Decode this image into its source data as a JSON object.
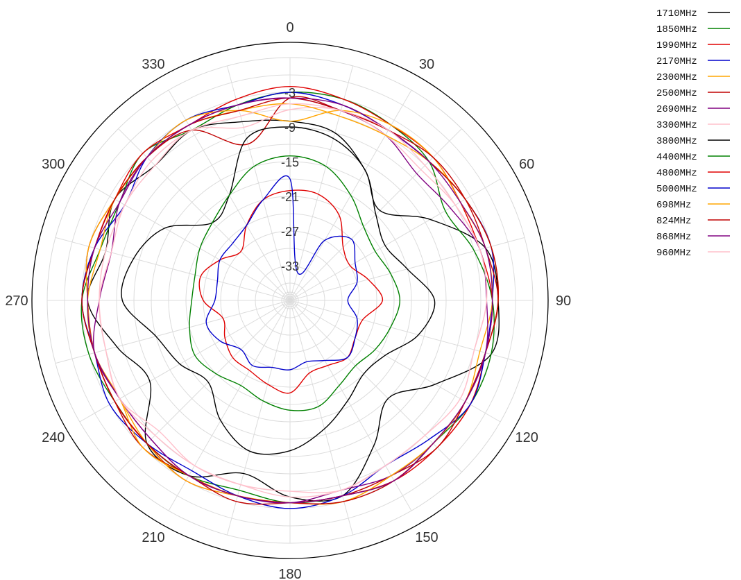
{
  "chart_data": {
    "type": "polar-line",
    "angle_direction": "clockwise",
    "zero_direction": "top",
    "angle_labels": [
      "0",
      "30",
      "60",
      "90",
      "120",
      "150",
      "180",
      "210",
      "240",
      "270",
      "300",
      "330"
    ],
    "angle_label_values": [
      0,
      30,
      60,
      90,
      120,
      150,
      180,
      210,
      240,
      270,
      300,
      330
    ],
    "radial_labels": [
      "-3",
      "-9",
      "-15",
      "-21",
      "-27",
      "-33"
    ],
    "radial_label_values": [
      -3,
      -9,
      -15,
      -21,
      -27,
      -33
    ],
    "rlim": [
      -39,
      3
    ],
    "grid": true,
    "legend_position": "top-right",
    "series": [
      {
        "name": "1710MHz",
        "color": "#000000",
        "values": [
          -8,
          -9,
          -13,
          -17,
          -11,
          -4,
          -3,
          -3,
          -10,
          -15,
          -10,
          -4,
          -5,
          -8,
          -4,
          -4,
          -11,
          -8,
          -4,
          -6,
          -4,
          -6,
          -5,
          -7
        ]
      },
      {
        "name": "1850MHz",
        "color": "#008000",
        "values": [
          -3,
          -3,
          -4,
          -5,
          -8,
          -6,
          -4,
          -3,
          -3,
          -4,
          -3,
          -4,
          -4,
          -5,
          -4,
          -4,
          -4,
          -3,
          -3,
          -5,
          -5,
          -3,
          -5,
          -4
        ]
      },
      {
        "name": "1990MHz",
        "color": "#e00000",
        "values": [
          -2,
          -3,
          -4,
          -4,
          -5,
          -5,
          -4,
          -4,
          -3,
          -3,
          -3,
          -4,
          -4,
          -4,
          -3,
          -4,
          -4,
          -4,
          -3,
          -4,
          -4,
          -3,
          -4,
          -3
        ]
      },
      {
        "name": "2170MHz",
        "color": "#0000cc",
        "values": [
          -3,
          -4,
          -5,
          -5,
          -4,
          -3,
          -4,
          -4,
          -3,
          -5,
          -6,
          -4,
          -3,
          -4,
          -5,
          -4,
          -3,
          -4,
          -3,
          -4,
          -6,
          -4,
          -3,
          -4
        ]
      },
      {
        "name": "2300MHz",
        "color": "#ffa500",
        "values": [
          -8,
          -5,
          -4,
          -4,
          -5,
          -4,
          -4,
          -5,
          -4,
          -4,
          -4,
          -3,
          -4,
          -4,
          -3,
          -4,
          -5,
          -4,
          -4,
          -5,
          -4,
          -4,
          -3,
          -5
        ]
      },
      {
        "name": "2500MHz",
        "color": "#c00000",
        "values": [
          -4,
          -5,
          -5,
          -4,
          -4,
          -4,
          -3,
          -4,
          -4,
          -3,
          -4,
          -4,
          -4,
          -3,
          -4,
          -3,
          -4,
          -4,
          -4,
          -3,
          -4,
          -4,
          -5,
          -11
        ]
      },
      {
        "name": "2690MHz",
        "color": "#800080",
        "values": [
          -4,
          -5,
          -6,
          -8,
          -7,
          -5,
          -5,
          -4,
          -4,
          -4,
          -4,
          -5,
          -4,
          -4,
          -4,
          -5,
          -5,
          -4,
          -6,
          -7,
          -5,
          -4,
          -4,
          -4
        ]
      },
      {
        "name": "3300MHz",
        "color": "#ffc0cb",
        "values": [
          -6,
          -5,
          -6,
          -7,
          -6,
          -5,
          -5,
          -6,
          -5,
          -6,
          -6,
          -5,
          -6,
          -6,
          -6,
          -7,
          -5,
          -6,
          -6,
          -7,
          -6,
          -6,
          -5,
          -8
        ]
      },
      {
        "name": "3800MHz",
        "color": "#000000",
        "values": [
          -9,
          -10,
          -13,
          -18,
          -20,
          -18,
          -14,
          -16,
          -20,
          -21,
          -19,
          -16,
          -13,
          -12,
          -15,
          -19,
          -17,
          -15,
          -10,
          -11,
          -14,
          -20,
          -18,
          -10
        ]
      },
      {
        "name": "4400MHz",
        "color": "#008000",
        "values": [
          -14,
          -15,
          -18,
          -21,
          -22,
          -21,
          -20,
          -21,
          -22,
          -23,
          -22,
          -20,
          -20,
          -21,
          -22,
          -21,
          -20,
          -21,
          -22,
          -22,
          -21,
          -20,
          -18,
          -15
        ]
      },
      {
        "name": "4800MHz",
        "color": "#e00000",
        "values": [
          -20,
          -20,
          -22,
          -26,
          -27,
          -25,
          -23,
          -26,
          -26,
          -25,
          -26,
          -26,
          -23,
          -24,
          -25,
          -25,
          -26,
          -27,
          -24,
          -23,
          -25,
          -27,
          -24,
          -21
        ]
      },
      {
        "name": "5000MHz",
        "color": "#0000cc",
        "values": [
          -18,
          -34,
          -27,
          -24,
          -26,
          -27,
          -29,
          -27,
          -26,
          -25,
          -27,
          -28,
          -27,
          -27,
          -26,
          -27,
          -25,
          -24,
          -26,
          -26,
          -25,
          -25,
          -24,
          -21
        ]
      },
      {
        "name": "698MHz",
        "color": "#ffa500",
        "values": [
          -5,
          -6,
          -6,
          -5,
          -4,
          -3,
          -3,
          -4,
          -4,
          -4,
          -4,
          -3,
          -4,
          -4,
          -4,
          -3,
          -5,
          -4,
          -4,
          -3,
          -4,
          -4,
          -4,
          -5
        ]
      },
      {
        "name": "824MHz",
        "color": "#c00000",
        "values": [
          -4,
          -5,
          -5,
          -5,
          -4,
          -3,
          -3,
          -4,
          -4,
          -4,
          -3,
          -3,
          -4,
          -4,
          -4,
          -4,
          -4,
          -4,
          -3,
          -4,
          -4,
          -4,
          -4,
          -5
        ]
      },
      {
        "name": "868MHz",
        "color": "#800080",
        "values": [
          -4,
          -4,
          -5,
          -5,
          -5,
          -4,
          -4,
          -4,
          -4,
          -4,
          -3,
          -4,
          -4,
          -4,
          -4,
          -5,
          -5,
          -4,
          -4,
          -4,
          -5,
          -4,
          -4,
          -4
        ]
      },
      {
        "name": "960MHz",
        "color": "#ffc0cb",
        "values": [
          -5,
          -5,
          -5,
          -6,
          -6,
          -5,
          -5,
          -6,
          -5,
          -6,
          -6,
          -5,
          -5,
          -6,
          -6,
          -6,
          -5,
          -6,
          -6,
          -6,
          -6,
          -5,
          -5,
          -6
        ]
      }
    ]
  }
}
